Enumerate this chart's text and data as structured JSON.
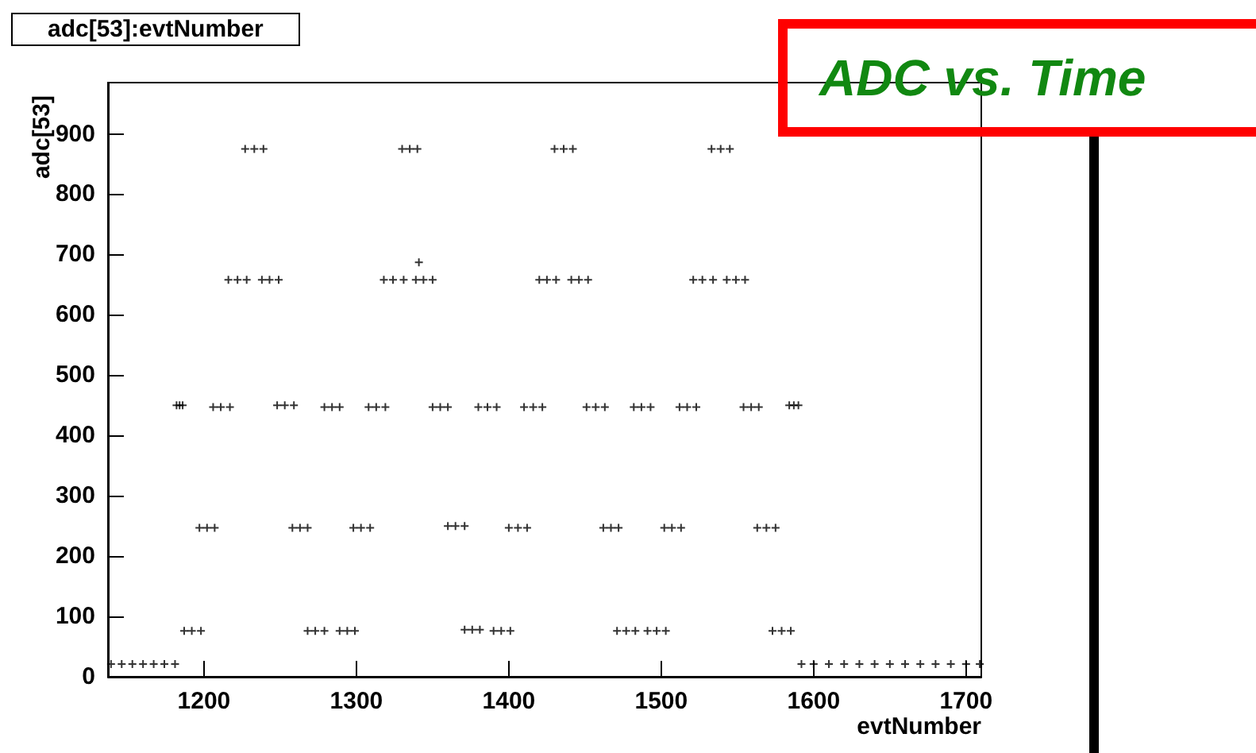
{
  "chart_data": {
    "type": "scatter",
    "title": "adc[53]:evtNumber",
    "xlabel": "evtNumber",
    "ylabel": "adc[53]",
    "annotations": [
      "ADC vs. Time"
    ],
    "xlim": [
      1137,
      1710
    ],
    "ylim": [
      0,
      985
    ],
    "xticks": [
      1200,
      1300,
      1400,
      1500,
      1600,
      1700
    ],
    "yticks": [
      0,
      100,
      200,
      300,
      400,
      500,
      600,
      700,
      800,
      900
    ],
    "grid": false,
    "marker": "cross",
    "series": [
      {
        "color": "#000000",
        "x": [
          1139,
          1146,
          1153,
          1160,
          1167,
          1174,
          1181,
          1182,
          1184,
          1186,
          1187,
          1192,
          1198,
          1197,
          1202,
          1207,
          1206,
          1211,
          1217,
          1216,
          1222,
          1228,
          1227,
          1233,
          1239,
          1238,
          1243,
          1249,
          1248,
          1253,
          1259,
          1258,
          1263,
          1268,
          1268,
          1273,
          1279,
          1279,
          1284,
          1289,
          1289,
          1294,
          1299,
          1298,
          1303,
          1309,
          1308,
          1313,
          1319,
          1318,
          1324,
          1331,
          1330,
          1335,
          1340,
          1341,
          1339,
          1344,
          1350,
          1350,
          1355,
          1360,
          1360,
          1365,
          1371,
          1371,
          1376,
          1381,
          1380,
          1386,
          1392,
          1390,
          1395,
          1401,
          1400,
          1406,
          1412,
          1410,
          1416,
          1422,
          1420,
          1425,
          1431,
          1430,
          1436,
          1442,
          1441,
          1446,
          1452,
          1451,
          1457,
          1463,
          1462,
          1467,
          1472,
          1471,
          1477,
          1483,
          1482,
          1487,
          1493,
          1491,
          1497,
          1503,
          1502,
          1507,
          1513,
          1512,
          1517,
          1523,
          1521,
          1527,
          1534,
          1533,
          1539,
          1545,
          1543,
          1549,
          1555,
          1554,
          1559,
          1564,
          1563,
          1569,
          1575,
          1573,
          1579,
          1585,
          1584,
          1587,
          1590,
          1592,
          1600,
          1610,
          1620,
          1630,
          1640,
          1650,
          1660,
          1670,
          1680,
          1690,
          1700,
          1709
        ],
        "values": [
          21,
          21,
          21,
          21,
          21,
          21,
          21,
          450,
          450,
          450,
          76,
          76,
          76,
          247,
          247,
          247,
          447,
          447,
          447,
          658,
          658,
          658,
          875,
          875,
          875,
          658,
          658,
          658,
          450,
          450,
          450,
          247,
          247,
          247,
          76,
          76,
          76,
          447,
          447,
          447,
          76,
          76,
          76,
          247,
          247,
          247,
          447,
          447,
          447,
          658,
          658,
          658,
          875,
          875,
          875,
          687,
          658,
          658,
          658,
          447,
          447,
          447,
          250,
          250,
          250,
          78,
          78,
          78,
          447,
          447,
          447,
          76,
          76,
          76,
          247,
          247,
          247,
          447,
          447,
          447,
          658,
          658,
          658,
          875,
          875,
          875,
          658,
          658,
          658,
          447,
          447,
          447,
          247,
          247,
          247,
          76,
          76,
          76,
          447,
          447,
          447,
          76,
          76,
          76,
          247,
          247,
          247,
          447,
          447,
          447,
          658,
          658,
          658,
          875,
          875,
          875,
          658,
          658,
          658,
          447,
          447,
          447,
          247,
          247,
          247,
          76,
          76,
          76,
          450,
          450,
          450,
          21,
          21,
          21,
          21,
          21,
          21,
          21,
          21,
          21,
          21,
          21,
          21,
          21
        ]
      }
    ]
  }
}
